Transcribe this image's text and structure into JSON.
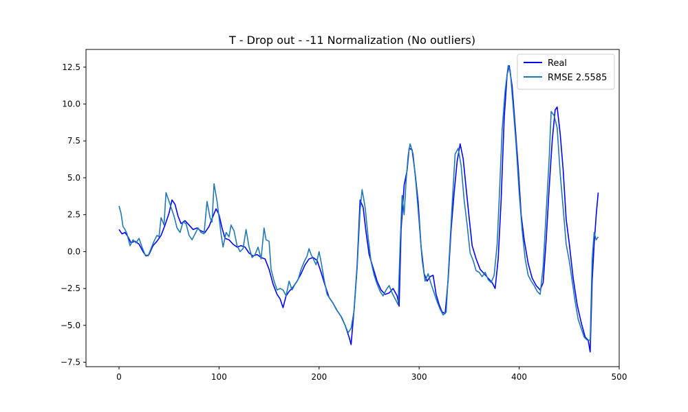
{
  "chart_data": {
    "type": "line",
    "title": "T - Drop out - -11 Normalization (No outliers)",
    "xlabel": "",
    "ylabel": "",
    "xlim": [
      -33,
      500
    ],
    "ylim": [
      -7.8,
      13.7
    ],
    "xticks": [
      0,
      100,
      200,
      300,
      400,
      500
    ],
    "xtick_labels": [
      "0",
      "100",
      "200",
      "300",
      "400",
      "500"
    ],
    "yticks": [
      -7.5,
      -5.0,
      -2.5,
      0.0,
      2.5,
      5.0,
      7.5,
      10.0,
      12.5
    ],
    "ytick_labels": [
      "−7.5",
      "−5.0",
      "−2.5",
      "0.0",
      "2.5",
      "5.0",
      "7.5",
      "10.0",
      "12.5"
    ],
    "grid": false,
    "legend_position": "top-right",
    "series": [
      {
        "name": "Real",
        "color": "#0000ff",
        "points": [
          [
            0,
            1.5
          ],
          [
            3,
            1.2
          ],
          [
            6,
            1.3
          ],
          [
            9,
            1.0
          ],
          [
            12,
            0.6
          ],
          [
            16,
            0.7
          ],
          [
            20,
            0.5
          ],
          [
            24,
            0.0
          ],
          [
            27,
            -0.3
          ],
          [
            30,
            -0.2
          ],
          [
            34,
            0.4
          ],
          [
            38,
            0.7
          ],
          [
            42,
            1.1
          ],
          [
            46,
            1.8
          ],
          [
            50,
            2.6
          ],
          [
            53,
            3.5
          ],
          [
            56,
            3.2
          ],
          [
            59,
            2.4
          ],
          [
            62,
            1.9
          ],
          [
            66,
            2.1
          ],
          [
            70,
            1.8
          ],
          [
            74,
            1.5
          ],
          [
            78,
            1.6
          ],
          [
            82,
            1.4
          ],
          [
            86,
            1.3
          ],
          [
            90,
            1.7
          ],
          [
            94,
            2.4
          ],
          [
            97,
            2.9
          ],
          [
            100,
            2.5
          ],
          [
            103,
            1.6
          ],
          [
            106,
            0.9
          ],
          [
            110,
            0.8
          ],
          [
            114,
            0.5
          ],
          [
            118,
            0.3
          ],
          [
            122,
            0.4
          ],
          [
            126,
            0.3
          ],
          [
            130,
            -0.1
          ],
          [
            134,
            -0.3
          ],
          [
            138,
            -0.2
          ],
          [
            142,
            -0.4
          ],
          [
            146,
            -0.5
          ],
          [
            150,
            -1.2
          ],
          [
            154,
            -2.2
          ],
          [
            158,
            -2.9
          ],
          [
            161,
            -3.2
          ],
          [
            164,
            -3.8
          ],
          [
            167,
            -3.0
          ],
          [
            170,
            -2.7
          ],
          [
            174,
            -2.4
          ],
          [
            178,
            -2.0
          ],
          [
            182,
            -1.5
          ],
          [
            186,
            -0.9
          ],
          [
            190,
            -0.5
          ],
          [
            194,
            -0.4
          ],
          [
            198,
            -0.6
          ],
          [
            202,
            -1.4
          ],
          [
            206,
            -2.3
          ],
          [
            210,
            -3.1
          ],
          [
            214,
            -3.5
          ],
          [
            218,
            -4.0
          ],
          [
            222,
            -4.4
          ],
          [
            226,
            -5.0
          ],
          [
            230,
            -5.8
          ],
          [
            232,
            -6.3
          ],
          [
            235,
            -3.9
          ],
          [
            238,
            -1.0
          ],
          [
            241,
            3.5
          ],
          [
            244,
            3.0
          ],
          [
            247,
            1.3
          ],
          [
            250,
            -0.2
          ],
          [
            254,
            -1.1
          ],
          [
            258,
            -2.0
          ],
          [
            262,
            -2.6
          ],
          [
            266,
            -2.9
          ],
          [
            270,
            -2.8
          ],
          [
            274,
            -2.5
          ],
          [
            278,
            -3.0
          ],
          [
            280,
            -3.7
          ],
          [
            282,
            1.5
          ],
          [
            285,
            4.5
          ],
          [
            288,
            5.5
          ],
          [
            290,
            7.0
          ],
          [
            293,
            6.9
          ],
          [
            296,
            5.3
          ],
          [
            299,
            3.4
          ],
          [
            302,
            0.3
          ],
          [
            305,
            -1.5
          ],
          [
            308,
            -2.0
          ],
          [
            311,
            -1.7
          ],
          [
            314,
            -1.6
          ],
          [
            317,
            -2.9
          ],
          [
            320,
            -3.6
          ],
          [
            323,
            -4.1
          ],
          [
            326,
            -4.2
          ],
          [
            329,
            -1.9
          ],
          [
            332,
            1.5
          ],
          [
            335,
            4.0
          ],
          [
            338,
            6.1
          ],
          [
            341,
            7.3
          ],
          [
            344,
            6.3
          ],
          [
            347,
            4.3
          ],
          [
            350,
            2.3
          ],
          [
            353,
            0.4
          ],
          [
            357,
            -0.5
          ],
          [
            361,
            -1.2
          ],
          [
            365,
            -1.5
          ],
          [
            369,
            -1.8
          ],
          [
            373,
            -2.1
          ],
          [
            376,
            -2.5
          ],
          [
            379,
            -0.5
          ],
          [
            382,
            3.5
          ],
          [
            385,
            9.0
          ],
          [
            388,
            12.0
          ],
          [
            390,
            12.6
          ],
          [
            393,
            11.2
          ],
          [
            396,
            8.5
          ],
          [
            399,
            5.8
          ],
          [
            402,
            2.5
          ],
          [
            405,
            0.8
          ],
          [
            409,
            -0.8
          ],
          [
            413,
            -1.8
          ],
          [
            417,
            -2.3
          ],
          [
            421,
            -2.6
          ],
          [
            424,
            -2.1
          ],
          [
            427,
            0.8
          ],
          [
            430,
            4.3
          ],
          [
            433,
            7.5
          ],
          [
            436,
            9.6
          ],
          [
            438,
            9.8
          ],
          [
            441,
            8.0
          ],
          [
            444,
            5.5
          ],
          [
            447,
            2.2
          ],
          [
            450,
            0.6
          ],
          [
            454,
            -1.8
          ],
          [
            458,
            -3.6
          ],
          [
            462,
            -4.8
          ],
          [
            466,
            -5.8
          ],
          [
            469,
            -6.0
          ],
          [
            471,
            -6.8
          ],
          [
            473,
            -2.0
          ],
          [
            475,
            0.5
          ],
          [
            477,
            2.5
          ],
          [
            479,
            4.0
          ]
        ]
      },
      {
        "name": "RMSE 2.5585",
        "color": "#1f77b4",
        "points": [
          [
            0,
            3.1
          ],
          [
            2,
            2.6
          ],
          [
            4,
            1.7
          ],
          [
            6,
            1.5
          ],
          [
            8,
            1.2
          ],
          [
            11,
            0.4
          ],
          [
            14,
            0.8
          ],
          [
            17,
            0.6
          ],
          [
            20,
            0.9
          ],
          [
            23,
            0.3
          ],
          [
            26,
            -0.2
          ],
          [
            29,
            -0.3
          ],
          [
            32,
            0.2
          ],
          [
            35,
            0.7
          ],
          [
            38,
            1.1
          ],
          [
            40,
            1.0
          ],
          [
            42,
            2.3
          ],
          [
            45,
            1.8
          ],
          [
            47,
            4.0
          ],
          [
            49,
            3.6
          ],
          [
            52,
            3.0
          ],
          [
            55,
            2.4
          ],
          [
            58,
            1.6
          ],
          [
            61,
            1.3
          ],
          [
            64,
            2.0
          ],
          [
            67,
            1.9
          ],
          [
            70,
            1.1
          ],
          [
            73,
            0.8
          ],
          [
            76,
            1.2
          ],
          [
            79,
            1.6
          ],
          [
            82,
            1.3
          ],
          [
            85,
            1.2
          ],
          [
            88,
            3.4
          ],
          [
            91,
            2.3
          ],
          [
            93,
            2.0
          ],
          [
            95,
            4.6
          ],
          [
            98,
            3.4
          ],
          [
            100,
            2.3
          ],
          [
            102,
            1.2
          ],
          [
            104,
            0.3
          ],
          [
            107,
            1.3
          ],
          [
            110,
            1.0
          ],
          [
            112,
            1.8
          ],
          [
            115,
            1.4
          ],
          [
            118,
            0.4
          ],
          [
            121,
            0.0
          ],
          [
            124,
            0.2
          ],
          [
            127,
            1.5
          ],
          [
            130,
            0.3
          ],
          [
            133,
            -0.4
          ],
          [
            136,
            -0.2
          ],
          [
            139,
            0.3
          ],
          [
            142,
            -0.5
          ],
          [
            145,
            1.6
          ],
          [
            147,
            0.8
          ],
          [
            150,
            0.7
          ],
          [
            152,
            -1.2
          ],
          [
            155,
            -2.0
          ],
          [
            158,
            -2.6
          ],
          [
            161,
            -2.5
          ],
          [
            164,
            -2.6
          ],
          [
            167,
            -3.0
          ],
          [
            170,
            -2.0
          ],
          [
            173,
            -2.6
          ],
          [
            176,
            -2.2
          ],
          [
            179,
            -1.9
          ],
          [
            182,
            -1.2
          ],
          [
            185,
            -0.7
          ],
          [
            188,
            -0.3
          ],
          [
            190,
            0.2
          ],
          [
            192,
            -0.2
          ],
          [
            195,
            -0.6
          ],
          [
            197,
            -0.9
          ],
          [
            200,
            0.0
          ],
          [
            202,
            -0.7
          ],
          [
            205,
            -1.9
          ],
          [
            208,
            -2.9
          ],
          [
            211,
            -3.2
          ],
          [
            214,
            -3.5
          ],
          [
            217,
            -3.9
          ],
          [
            220,
            -4.2
          ],
          [
            223,
            -4.5
          ],
          [
            226,
            -5.0
          ],
          [
            229,
            -5.5
          ],
          [
            232,
            -5.2
          ],
          [
            235,
            -4.0
          ],
          [
            238,
            -1.2
          ],
          [
            241,
            2.8
          ],
          [
            243,
            4.2
          ],
          [
            246,
            3.0
          ],
          [
            249,
            1.0
          ],
          [
            252,
            -0.7
          ],
          [
            255,
            -1.6
          ],
          [
            258,
            -2.2
          ],
          [
            261,
            -2.7
          ],
          [
            264,
            -3.0
          ],
          [
            267,
            -2.6
          ],
          [
            270,
            -2.3
          ],
          [
            273,
            -2.8
          ],
          [
            276,
            -3.2
          ],
          [
            279,
            -3.6
          ],
          [
            281,
            0.5
          ],
          [
            283,
            3.8
          ],
          [
            285,
            2.5
          ],
          [
            287,
            4.8
          ],
          [
            289,
            6.5
          ],
          [
            291,
            7.3
          ],
          [
            294,
            6.6
          ],
          [
            297,
            4.5
          ],
          [
            300,
            2.0
          ],
          [
            303,
            -0.6
          ],
          [
            306,
            -2.0
          ],
          [
            309,
            -1.5
          ],
          [
            312,
            -2.2
          ],
          [
            315,
            -2.8
          ],
          [
            318,
            -3.4
          ],
          [
            321,
            -3.9
          ],
          [
            324,
            -4.3
          ],
          [
            327,
            -4.1
          ],
          [
            330,
            -0.5
          ],
          [
            333,
            3.2
          ],
          [
            336,
            6.6
          ],
          [
            339,
            7.0
          ],
          [
            342,
            5.8
          ],
          [
            345,
            3.5
          ],
          [
            348,
            1.8
          ],
          [
            351,
            -0.1
          ],
          [
            354,
            -0.6
          ],
          [
            357,
            -1.3
          ],
          [
            360,
            -1.4
          ],
          [
            363,
            -1.7
          ],
          [
            366,
            -1.4
          ],
          [
            369,
            -1.9
          ],
          [
            372,
            -2.1
          ],
          [
            375,
            -1.6
          ],
          [
            378,
            0.5
          ],
          [
            380,
            3.5
          ],
          [
            383,
            8.3
          ],
          [
            386,
            10.9
          ],
          [
            389,
            12.6
          ],
          [
            391,
            12.3
          ],
          [
            394,
            9.8
          ],
          [
            397,
            7.2
          ],
          [
            400,
            4.0
          ],
          [
            403,
            1.4
          ],
          [
            406,
            -0.5
          ],
          [
            409,
            -1.6
          ],
          [
            412,
            -2.0
          ],
          [
            415,
            -2.3
          ],
          [
            418,
            -2.7
          ],
          [
            421,
            -2.9
          ],
          [
            424,
            -1.0
          ],
          [
            427,
            2.7
          ],
          [
            430,
            6.3
          ],
          [
            432,
            9.5
          ],
          [
            435,
            9.2
          ],
          [
            438,
            8.4
          ],
          [
            441,
            5.3
          ],
          [
            444,
            2.9
          ],
          [
            447,
            0.5
          ],
          [
            450,
            -0.6
          ],
          [
            453,
            -2.0
          ],
          [
            456,
            -3.4
          ],
          [
            459,
            -4.6
          ],
          [
            462,
            -5.2
          ],
          [
            465,
            -5.8
          ],
          [
            468,
            -6.0
          ],
          [
            471,
            -6.0
          ],
          [
            473,
            -0.5
          ],
          [
            475,
            1.3
          ],
          [
            477,
            0.8
          ],
          [
            479,
            1.0
          ]
        ]
      }
    ]
  }
}
